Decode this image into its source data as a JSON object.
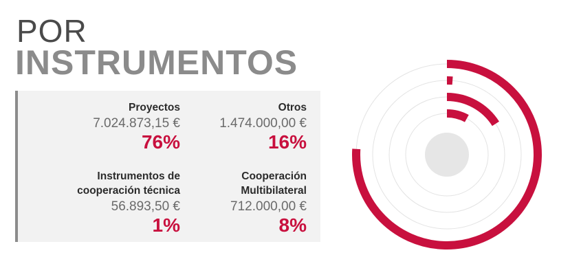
{
  "heading": {
    "line1": "POR",
    "line2": "INSTRUMENTOS"
  },
  "items": [
    {
      "name_line1": "Proyectos",
      "name_line2": "",
      "amount": "7.024.873,15 €",
      "percent_label": "76%"
    },
    {
      "name_line1": "Otros",
      "name_line2": "",
      "amount": "1.474.000,00 €",
      "percent_label": "16%"
    },
    {
      "name_line1": "Instrumentos de",
      "name_line2": "cooperación técnica",
      "amount": "56.893,50 €",
      "percent_label": "1%"
    },
    {
      "name_line1": "Cooperación",
      "name_line2": "Multibilateral",
      "amount": "712.000,00 €",
      "percent_label": "8%"
    }
  ],
  "colors": {
    "accent": "#c8103e",
    "track": "#e3e3e3",
    "center": "#e6e6e6",
    "text_dark": "#2b2b2b",
    "text_gray": "#8b8b8b"
  },
  "chart_data": {
    "type": "radial-bar",
    "categories": [
      "Proyectos",
      "Otros",
      "Instrumentos de cooperación técnica",
      "Cooperación Multibilateral"
    ],
    "values": [
      76,
      16,
      1,
      8
    ],
    "unit": "%",
    "rings_outer_to_inner": [
      "Proyectos",
      "Instrumentos de cooperación técnica",
      "Otros",
      "Cooperación Multibilateral"
    ]
  }
}
